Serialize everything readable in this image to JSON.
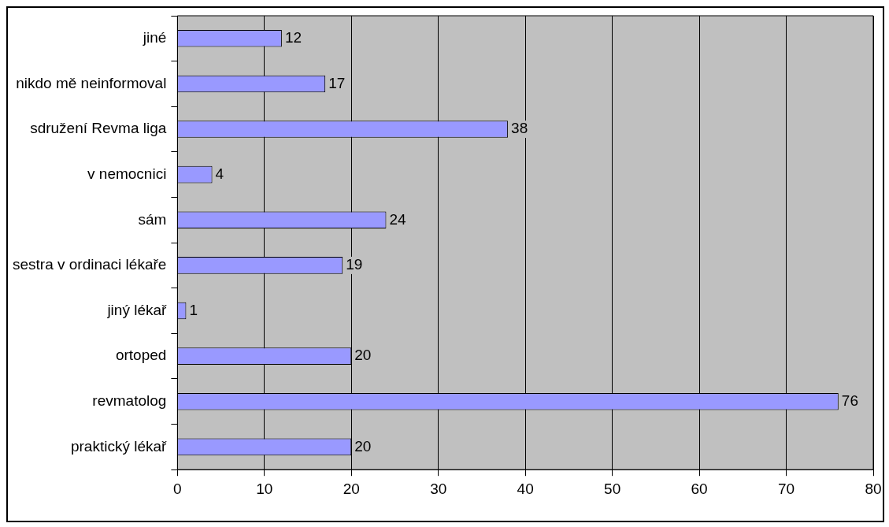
{
  "chart_data": {
    "type": "bar",
    "orientation": "horizontal",
    "categories": [
      "jiné",
      "nikdo mě neinformoval",
      "sdružení Revma liga",
      "v nemocnici",
      "sám",
      "sestra v ordinaci lékaře",
      "jiný lékař",
      "ortoped",
      "revmatolog",
      "praktický lékař"
    ],
    "values": [
      12,
      17,
      38,
      4,
      24,
      19,
      1,
      20,
      76,
      20
    ],
    "color": "#9999ff",
    "xlim": [
      0,
      80
    ],
    "xticks": [
      0,
      10,
      20,
      30,
      40,
      50,
      60,
      70,
      80
    ],
    "grid": "x",
    "legend": false,
    "data_labels": true
  }
}
